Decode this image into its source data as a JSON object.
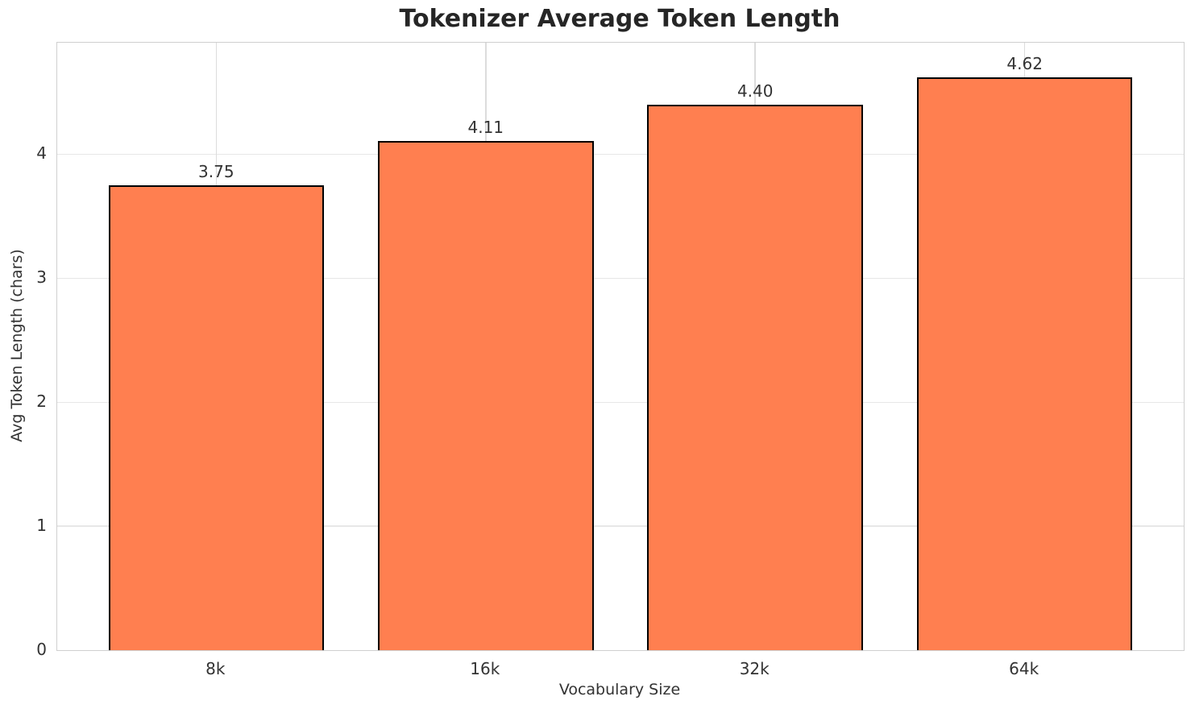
{
  "chart_data": {
    "type": "bar",
    "title": "Tokenizer Average Token Length",
    "xlabel": "Vocabulary Size",
    "ylabel": "Avg Token Length (chars)",
    "categories": [
      "8k",
      "16k",
      "32k",
      "64k"
    ],
    "values": [
      3.75,
      4.11,
      4.4,
      4.62
    ],
    "value_labels": [
      "3.75",
      "4.11",
      "4.40",
      "4.62"
    ],
    "yticks": [
      0,
      1,
      2,
      3,
      4
    ],
    "ylim": [
      0,
      4.9
    ],
    "xlim": [
      -0.59,
      3.59
    ],
    "bar_rel_width": 0.8,
    "bar_color": "#FF7F50",
    "bar_edge_color": "#000000",
    "grid": "on",
    "legend_position": "none"
  }
}
